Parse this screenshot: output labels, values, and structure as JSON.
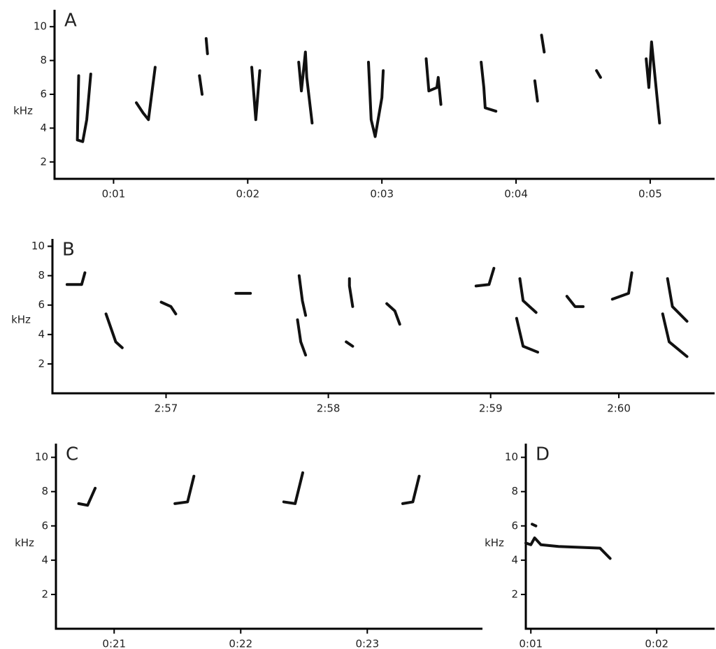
{
  "chart_data": [
    {
      "type": "spectrogram",
      "panel_label": "A",
      "ylabel": "kHz",
      "color": "#111111",
      "xlim": [
        0.56,
        5.48
      ],
      "ylim": [
        1,
        11
      ],
      "xticks": [
        {
          "value": 1,
          "label": "0:01"
        },
        {
          "value": 2,
          "label": "0:02"
        },
        {
          "value": 3,
          "label": "0:03"
        },
        {
          "value": 4,
          "label": "0:04"
        },
        {
          "value": 5,
          "label": "0:05"
        }
      ],
      "yticks": [
        2,
        4,
        6,
        8,
        10
      ],
      "syllables": [
        {
          "x": [
            0.74,
            0.73,
            0.77,
            0.8,
            0.83
          ],
          "y": [
            7.1,
            3.3,
            3.2,
            4.5,
            7.2
          ]
        },
        {
          "x": [
            1.17,
            1.22,
            1.26,
            1.31
          ],
          "y": [
            5.5,
            4.9,
            4.5,
            7.6
          ]
        },
        {
          "x": [
            1.64,
            1.66
          ],
          "y": [
            7.1,
            6.0
          ]
        },
        {
          "x": [
            1.69,
            1.7
          ],
          "y": [
            9.3,
            8.4
          ]
        },
        {
          "x": [
            2.03,
            2.06,
            2.09
          ],
          "y": [
            7.6,
            4.5,
            7.4
          ]
        },
        {
          "x": [
            2.38,
            2.4,
            2.43,
            2.44,
            2.48
          ],
          "y": [
            7.9,
            6.2,
            8.5,
            7.0,
            4.3
          ]
        },
        {
          "x": [
            2.9,
            2.92,
            2.95,
            3.0,
            3.01
          ],
          "y": [
            7.9,
            4.5,
            3.5,
            5.8,
            7.4
          ]
        },
        {
          "x": [
            3.33,
            3.35,
            3.41,
            3.42,
            3.44
          ],
          "y": [
            8.1,
            6.2,
            6.4,
            7.0,
            5.4
          ]
        },
        {
          "x": [
            3.74,
            3.76,
            3.77,
            3.85
          ],
          "y": [
            7.9,
            6.4,
            5.2,
            5.0
          ]
        },
        {
          "x": [
            4.14,
            4.16
          ],
          "y": [
            6.8,
            5.6
          ]
        },
        {
          "x": [
            4.19,
            4.21
          ],
          "y": [
            9.5,
            8.5
          ]
        },
        {
          "x": [
            4.6,
            4.63
          ],
          "y": [
            7.4,
            7.0
          ]
        },
        {
          "x": [
            4.97,
            4.99,
            5.01,
            5.07
          ],
          "y": [
            8.1,
            6.4,
            9.1,
            4.3
          ]
        }
      ]
    },
    {
      "type": "spectrogram",
      "panel_label": "B",
      "ylabel": "kHz",
      "color": "#111111",
      "xlim": [
        176.3,
        180.38
      ],
      "ylim": [
        0,
        10.5
      ],
      "xticks": [
        {
          "value": 177,
          "label": "2:57"
        },
        {
          "value": 178,
          "label": "2:58"
        },
        {
          "value": 179,
          "label": "2:59"
        },
        {
          "value": 179.79,
          "label": "2:60"
        }
      ],
      "yticks": [
        2,
        4,
        6,
        8,
        10
      ],
      "syllables": [
        {
          "x": [
            176.39,
            176.48,
            176.5
          ],
          "y": [
            7.4,
            7.4,
            8.2
          ]
        },
        {
          "x": [
            176.63,
            176.69,
            176.73
          ],
          "y": [
            5.4,
            3.5,
            3.1
          ]
        },
        {
          "x": [
            176.97,
            177.03,
            177.06
          ],
          "y": [
            6.2,
            5.9,
            5.4
          ]
        },
        {
          "x": [
            177.43,
            177.52
          ],
          "y": [
            6.8,
            6.8
          ]
        },
        {
          "x": [
            177.82,
            177.84,
            177.86
          ],
          "y": [
            8.0,
            6.3,
            5.3
          ]
        },
        {
          "x": [
            177.81,
            177.83,
            177.86
          ],
          "y": [
            5.0,
            3.5,
            2.6
          ]
        },
        {
          "x": [
            178.13,
            178.13,
            178.15
          ],
          "y": [
            7.8,
            7.3,
            5.9
          ]
        },
        {
          "x": [
            178.11,
            178.15
          ],
          "y": [
            3.5,
            3.2
          ]
        },
        {
          "x": [
            178.36,
            178.41,
            178.44
          ],
          "y": [
            6.1,
            5.6,
            4.7
          ]
        },
        {
          "x": [
            178.91,
            178.99,
            179.02
          ],
          "y": [
            7.3,
            7.4,
            8.5
          ]
        },
        {
          "x": [
            179.18,
            179.2,
            179.28
          ],
          "y": [
            7.8,
            6.3,
            5.5
          ]
        },
        {
          "x": [
            179.16,
            179.2,
            179.29
          ],
          "y": [
            5.1,
            3.2,
            2.8
          ]
        },
        {
          "x": [
            179.47,
            179.52,
            179.57
          ],
          "y": [
            6.6,
            5.9,
            5.9
          ]
        },
        {
          "x": [
            179.75,
            179.85,
            179.87
          ],
          "y": [
            6.4,
            6.8,
            8.2
          ]
        },
        {
          "x": [
            180.09,
            180.12,
            180.21
          ],
          "y": [
            7.8,
            5.9,
            4.9
          ]
        },
        {
          "x": [
            180.06,
            180.1,
            180.21
          ],
          "y": [
            5.4,
            3.5,
            2.5
          ]
        }
      ]
    },
    {
      "type": "spectrogram",
      "panel_label": "C",
      "ylabel": "kHz",
      "color": "#111111",
      "xlim": [
        20.54,
        23.91
      ],
      "ylim": [
        0,
        10.8
      ],
      "xticks": [
        {
          "value": 21,
          "label": "0:21"
        },
        {
          "value": 22,
          "label": "0:22"
        },
        {
          "value": 23,
          "label": "0:23"
        }
      ],
      "yticks": [
        2,
        4,
        6,
        8,
        10
      ],
      "syllables": [
        {
          "x": [
            20.72,
            20.79,
            20.85
          ],
          "y": [
            7.3,
            7.2,
            8.2
          ]
        },
        {
          "x": [
            21.48,
            21.58,
            21.63
          ],
          "y": [
            7.3,
            7.4,
            8.9
          ]
        },
        {
          "x": [
            22.34,
            22.43,
            22.49
          ],
          "y": [
            7.4,
            7.3,
            9.1
          ]
        },
        {
          "x": [
            23.28,
            23.36,
            23.41
          ],
          "y": [
            7.3,
            7.4,
            8.9
          ]
        }
      ]
    },
    {
      "type": "spectrogram",
      "panel_label": "D",
      "ylabel": "kHz",
      "color": "#111111",
      "xlim": [
        0.96,
        2.46
      ],
      "ylim": [
        0,
        10.8
      ],
      "xticks": [
        {
          "value": 1,
          "label": "0:01"
        },
        {
          "value": 2,
          "label": "0:02"
        }
      ],
      "yticks": [
        2,
        4,
        6,
        8,
        10
      ],
      "syllables": [
        {
          "x": [
            0.96,
            1.0,
            1.03,
            1.08,
            1.22,
            1.55,
            1.63
          ],
          "y": [
            5.0,
            4.9,
            5.3,
            4.9,
            4.8,
            4.7,
            4.1
          ]
        },
        {
          "x": [
            1.01,
            1.04
          ],
          "y": [
            6.1,
            6.0
          ]
        }
      ]
    }
  ]
}
